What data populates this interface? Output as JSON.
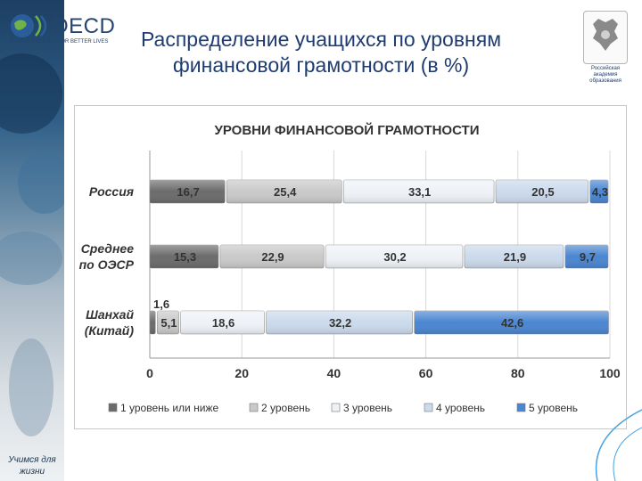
{
  "branding": {
    "logo_text": "OECD",
    "logo_tagline": "BETTER POLICIES FOR BETTER LIVES",
    "emblem_caption": "Российская академия образования",
    "sidebar_caption": "Учимся для жизни"
  },
  "slide": {
    "title": "Распределение учащихся по уровням финансовой грамотности (в %)"
  },
  "colors": {
    "level1": "#6b6b6b",
    "level2": "#c9c9c9",
    "level3": "#eef2f7",
    "level4": "#cbdaec",
    "level5": "#4a86d1",
    "title_blue": "#1f3c70"
  },
  "chart_data": {
    "type": "bar",
    "orientation": "horizontal",
    "stacked": true,
    "title": "УРОВНИ ФИНАНСОВОЙ ГРАМОТНОСТИ",
    "categories": [
      "Россия",
      "Среднее по ОЭСР",
      "Шанхай (Китай)"
    ],
    "category_lines": [
      [
        "Россия"
      ],
      [
        "Среднее",
        "по ОЭСР"
      ],
      [
        "Шанхай",
        "(Китай)"
      ]
    ],
    "series": [
      {
        "name": "1 уровень или ниже",
        "values": [
          16.7,
          15.3,
          1.6
        ],
        "labels": [
          "16,7",
          "15,3",
          "1,6"
        ]
      },
      {
        "name": "2 уровень",
        "values": [
          25.4,
          22.9,
          5.1
        ],
        "labels": [
          "25,4",
          "22,9",
          "5,1"
        ]
      },
      {
        "name": "3 уровень",
        "values": [
          33.1,
          30.2,
          18.6
        ],
        "labels": [
          "33,1",
          "30,2",
          "18,6"
        ]
      },
      {
        "name": "4 уровень",
        "values": [
          20.5,
          21.9,
          32.2
        ],
        "labels": [
          "20,5",
          "21,9",
          "32,2"
        ]
      },
      {
        "name": "5 уровень",
        "values": [
          4.3,
          9.7,
          42.6
        ],
        "labels": [
          "4,3",
          "9,7",
          "42,6"
        ]
      }
    ],
    "x_ticks": [
      0,
      20,
      40,
      60,
      80,
      100
    ],
    "xlim": [
      0,
      100
    ],
    "grid": true,
    "legend_position": "bottom"
  }
}
